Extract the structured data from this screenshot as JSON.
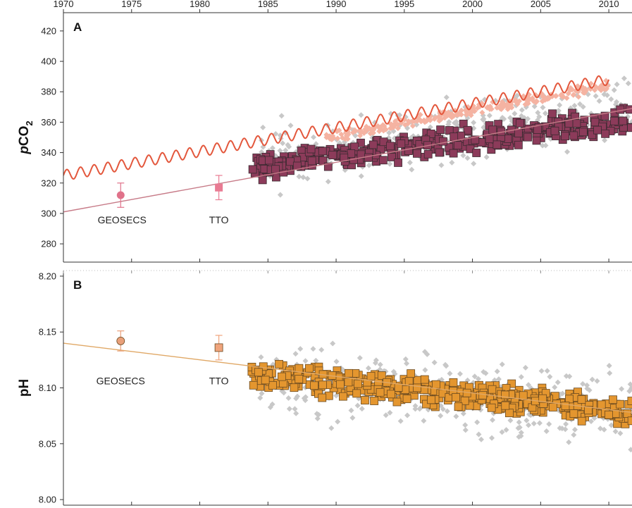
{
  "chart_data": [
    {
      "type": "scatter",
      "panel_label": "A",
      "ylabel_main": "pCO",
      "ylabel_sub": "2",
      "xlim": [
        1970,
        2011.7
      ],
      "ylim": [
        268,
        432
      ],
      "xticks": [
        1970,
        1975,
        1980,
        1985,
        1990,
        1995,
        2000,
        2005,
        2010
      ],
      "yticks": [
        280,
        300,
        320,
        340,
        360,
        380,
        400,
        420
      ],
      "x_axis_position": "top",
      "grid": false,
      "annotations": [
        {
          "text": "GEOSECS",
          "x": 1974.3,
          "y": 300
        },
        {
          "text": "TTO",
          "x": 1981.4,
          "y": 300
        }
      ],
      "points": [
        {
          "label": "GEOSECS",
          "marker": "circle",
          "color": "#e0728a",
          "x": 1974.2,
          "y": 312,
          "err": 8
        },
        {
          "label": "TTO",
          "marker": "square",
          "color": "#e97b93",
          "x": 1981.4,
          "y": 317,
          "err": 8
        }
      ],
      "trend": {
        "color": "#c77b88",
        "x0": 1970,
        "y0": 301,
        "x1": 2011.7,
        "y1": 369
      },
      "atmospheric": {
        "color": "#e3573c",
        "x0": 1970,
        "y0": 325,
        "x1": 2010,
        "y1": 388,
        "amplitude": 3.5
      },
      "series": [
        {
          "name": "",
          "marker": "diamond",
          "color": "#c8c8c8",
          "x_range": [
            1984,
            2011.7
          ],
          "y_center0": 335,
          "y_center1": 370,
          "spread": 28,
          "count": 330,
          "seed": 11
        },
        {
          "name": "",
          "marker": "diamond",
          "color": "#f5b3a2",
          "x_range": [
            1989.2,
            2010
          ],
          "y_center0": 350,
          "y_center1": 384,
          "spread": 5,
          "count": 260,
          "seed": 23
        },
        {
          "name": "",
          "marker": "square",
          "color": "#8c3b5a",
          "x_range": [
            1983.8,
            2011.7
          ],
          "y_center0": 330,
          "y_center1": 362,
          "spread": 12,
          "count": 360,
          "seed": 37
        }
      ]
    },
    {
      "type": "scatter",
      "panel_label": "B",
      "ylabel_main": "pH",
      "xlim": [
        1970,
        2011.7
      ],
      "ylim": [
        7.995,
        8.205
      ],
      "yticks": [
        8.0,
        8.05,
        8.1,
        8.15,
        8.2
      ],
      "ytick_labels": [
        "8.00",
        "8.05",
        "8.10",
        "8.15",
        "8.20"
      ],
      "grid": false,
      "annotations": [
        {
          "text": "GEOSECS",
          "x": 1974.2,
          "y": 8.112
        },
        {
          "text": "TTO",
          "x": 1981.4,
          "y": 8.112
        }
      ],
      "points": [
        {
          "label": "GEOSECS",
          "marker": "circle",
          "color": "#e9a07a",
          "x": 1974.2,
          "y": 8.142,
          "err": 0.009
        },
        {
          "label": "TTO",
          "marker": "square",
          "color": "#f0a47c",
          "x": 1981.4,
          "y": 8.136,
          "err": 0.011
        }
      ],
      "trend": {
        "color": "#e0a866",
        "x0": 1970,
        "y0": 8.14,
        "x1": 2011.7,
        "y1": 8.078
      },
      "series": [
        {
          "name": "",
          "marker": "diamond",
          "color": "#c8c8c8",
          "x_range": [
            1984,
            2011.7
          ],
          "y_center0": 8.11,
          "y_center1": 8.08,
          "spread": 0.05,
          "count": 320,
          "seed": 53
        },
        {
          "name": "",
          "marker": "square",
          "color": "#e4962f",
          "x_range": [
            1983.8,
            2011.7
          ],
          "y_center0": 8.113,
          "y_center1": 8.078,
          "spread": 0.017,
          "count": 420,
          "seed": 71
        }
      ]
    }
  ]
}
